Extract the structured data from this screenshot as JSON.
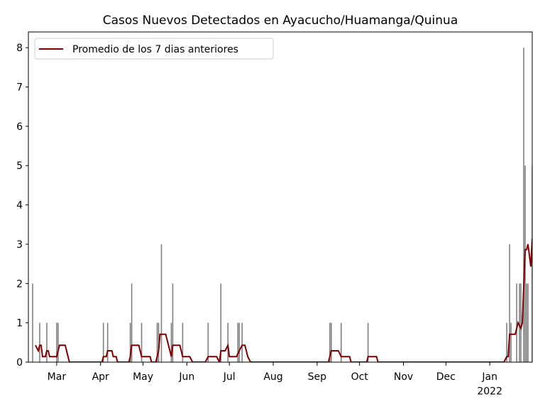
{
  "chart_data": {
    "type": "bar",
    "title": "Casos Nuevos Detectados en Ayacucho/Huamanga/Quinua",
    "legend": "upper left",
    "xlim": [
      -20,
      336
    ],
    "xticks": [
      {
        "value": 0,
        "label": "Mar"
      },
      {
        "value": 31,
        "label": "Apr"
      },
      {
        "value": 61,
        "label": "May"
      },
      {
        "value": 92,
        "label": "Jun"
      },
      {
        "value": 122,
        "label": "Jul"
      },
      {
        "value": 153,
        "label": "Aug"
      },
      {
        "value": 184,
        "label": "Sep"
      },
      {
        "value": 214,
        "label": "Oct"
      },
      {
        "value": 245,
        "label": "Nov"
      },
      {
        "value": 275,
        "label": "Dec"
      },
      {
        "value": 306,
        "label": "Jan\n2022"
      }
    ],
    "ylim": [
      0,
      8.4
    ],
    "yticks": [
      0,
      1,
      2,
      3,
      4,
      5,
      6,
      7,
      8
    ],
    "series": [
      {
        "type": "bar",
        "color": "#808080",
        "x": [
          -17,
          -12,
          -7,
          0,
          1,
          33,
          36,
          52,
          53,
          60,
          71,
          72,
          74,
          81,
          82,
          89,
          107,
          116,
          121,
          128,
          129,
          131,
          193,
          194,
          201,
          220,
          318,
          320,
          321,
          325,
          327,
          328,
          330,
          331,
          332,
          333,
          336
        ],
        "values": [
          2,
          1,
          1,
          1,
          1,
          1,
          1,
          1,
          2,
          1,
          1,
          1,
          3,
          1,
          2,
          1,
          1,
          2,
          1,
          1,
          1,
          1,
          1,
          1,
          1,
          1,
          1,
          3,
          1,
          2,
          2,
          2,
          8,
          5,
          2,
          2,
          5
        ]
      },
      {
        "type": "line",
        "name": "Promedio de los 7 dias anteriores",
        "color": "#800000",
        "x": [
          -15,
          -13,
          -12,
          -11,
          -10,
          -8,
          -7,
          -6,
          -5,
          0,
          1,
          2,
          6,
          9,
          32,
          33,
          35,
          36,
          39,
          40,
          42,
          43,
          51,
          52,
          53,
          58,
          60,
          66,
          67,
          70,
          72,
          73,
          77,
          79,
          81,
          82,
          87,
          89,
          94,
          96,
          105,
          107,
          113,
          115,
          116,
          119,
          121,
          122,
          127,
          129,
          131,
          133,
          135,
          137,
          192,
          194,
          199,
          201,
          207,
          208,
          219,
          220,
          226,
          227,
          316,
          318,
          319,
          320,
          324,
          326,
          328,
          329,
          331,
          332,
          333,
          335,
          336
        ],
        "values": [
          0.43,
          0.29,
          0.43,
          0.43,
          0.14,
          0.14,
          0.29,
          0.29,
          0.14,
          0.14,
          0.29,
          0.43,
          0.43,
          0,
          0,
          0.14,
          0.14,
          0.29,
          0.29,
          0.14,
          0.14,
          0,
          0,
          0.14,
          0.43,
          0.43,
          0.14,
          0.14,
          0,
          0,
          0.29,
          0.71,
          0.71,
          0.43,
          0.14,
          0.43,
          0.43,
          0.14,
          0.14,
          0,
          0,
          0.14,
          0.14,
          0,
          0.29,
          0.29,
          0.43,
          0.14,
          0.14,
          0.29,
          0.43,
          0.43,
          0.14,
          0,
          0,
          0.29,
          0.29,
          0.14,
          0.14,
          0,
          0,
          0.14,
          0.14,
          0,
          0,
          0.14,
          0.14,
          0.71,
          0.71,
          1,
          0.86,
          1,
          2.86,
          2.86,
          3,
          2.43,
          3.14
        ]
      }
    ]
  }
}
